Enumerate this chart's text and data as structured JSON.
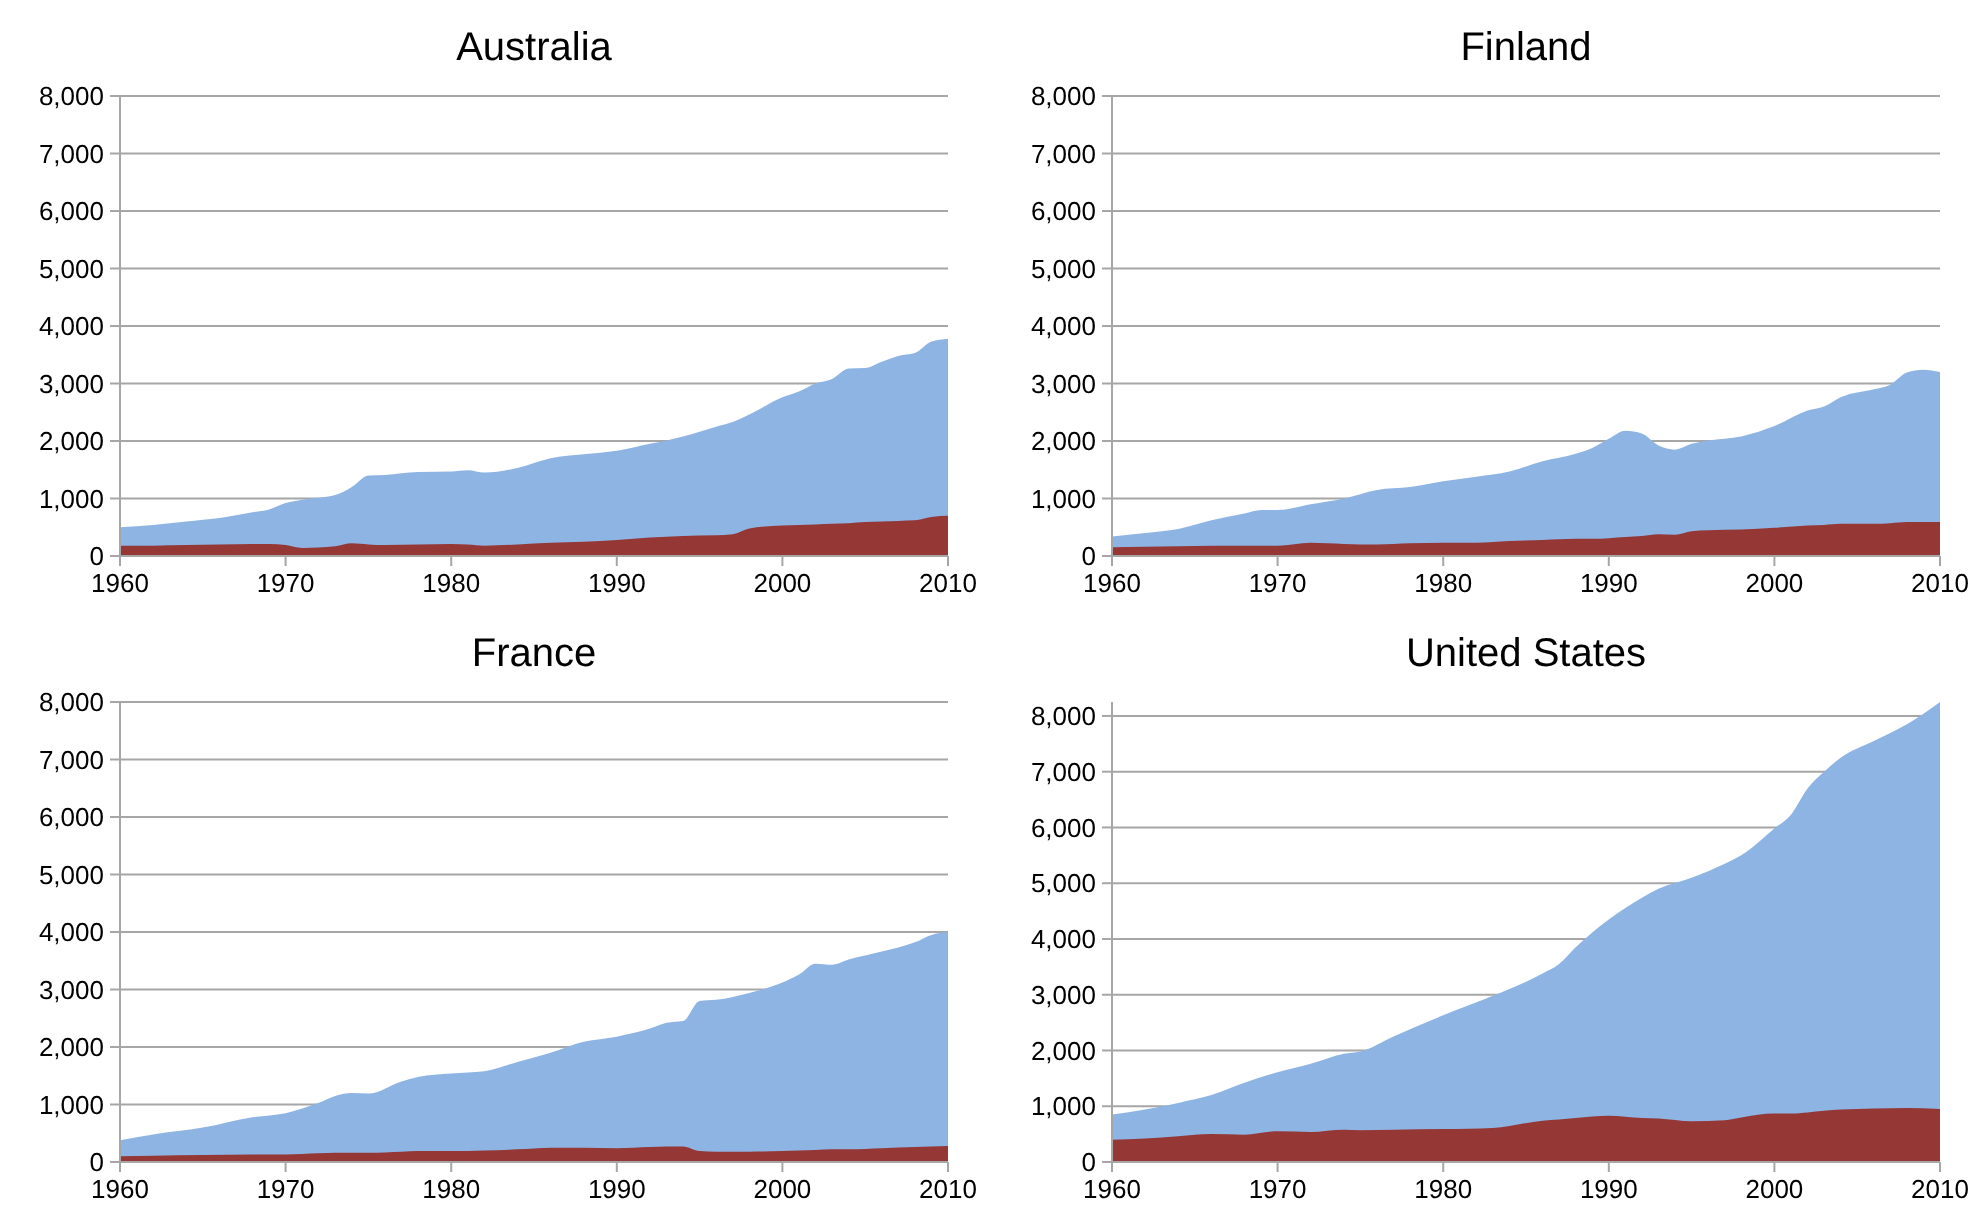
{
  "chart_data": [
    {
      "type": "area",
      "title": "Australia",
      "x": [
        1960,
        1962,
        1964,
        1966,
        1968,
        1969,
        1970,
        1971,
        1973,
        1974,
        1975,
        1976,
        1978,
        1980,
        1981,
        1982,
        1984,
        1986,
        1988,
        1990,
        1992,
        1994,
        1996,
        1997,
        1998,
        2000,
        2001,
        2002,
        2003,
        2004,
        2005,
        2006,
        2007,
        2008,
        2009,
        2010
      ],
      "xlim": [
        1960,
        2010
      ],
      "xticks": [
        1960,
        1970,
        1980,
        1990,
        2000,
        2010
      ],
      "ylim": [
        0,
        8000
      ],
      "yticks": [
        {
          "value": 0,
          "label": "0"
        },
        {
          "value": 1000,
          "label": "1,000"
        },
        {
          "value": 2000,
          "label": "2,000"
        },
        {
          "value": 3000,
          "label": "3,000"
        },
        {
          "value": 4000,
          "label": "4,000"
        },
        {
          "value": 5000,
          "label": "5,000"
        },
        {
          "value": 6000,
          "label": "6,000"
        },
        {
          "value": 7000,
          "label": "7,000"
        },
        {
          "value": 8000,
          "label": "8,000"
        }
      ],
      "grid": "y",
      "series": [
        {
          "color": "#8eb4e3",
          "values": [
            500,
            540,
            600,
            660,
            760,
            810,
            920,
            980,
            1060,
            1200,
            1400,
            1410,
            1460,
            1470,
            1490,
            1450,
            1530,
            1700,
            1770,
            1830,
            1950,
            2080,
            2250,
            2330,
            2460,
            2760,
            2860,
            3000,
            3080,
            3260,
            3270,
            3380,
            3480,
            3530,
            3730,
            3780
          ]
        },
        {
          "color": "#953735",
          "values": [
            180,
            180,
            190,
            200,
            210,
            210,
            190,
            140,
            170,
            220,
            200,
            190,
            200,
            210,
            200,
            180,
            200,
            230,
            250,
            280,
            320,
            350,
            360,
            380,
            480,
            530,
            540,
            550,
            560,
            570,
            590,
            600,
            610,
            620,
            680,
            700
          ]
        }
      ]
    },
    {
      "type": "area",
      "title": "Finland",
      "x": [
        1960,
        1962,
        1964,
        1966,
        1968,
        1969,
        1970,
        1972,
        1974,
        1976,
        1978,
        1980,
        1982,
        1984,
        1986,
        1988,
        1989,
        1990,
        1991,
        1992,
        1993,
        1994,
        1995,
        1996,
        1998,
        2000,
        2002,
        2003,
        2004,
        2006,
        2007,
        2008,
        2009,
        2010
      ],
      "xlim": [
        1960,
        2010
      ],
      "xticks": [
        1960,
        1970,
        1980,
        1990,
        2000,
        2010
      ],
      "ylim": [
        0,
        8000
      ],
      "yticks": [
        {
          "value": 0,
          "label": "0"
        },
        {
          "value": 1000,
          "label": "1,000"
        },
        {
          "value": 2000,
          "label": "2,000"
        },
        {
          "value": 3000,
          "label": "3,000"
        },
        {
          "value": 4000,
          "label": "4,000"
        },
        {
          "value": 5000,
          "label": "5,000"
        },
        {
          "value": 6000,
          "label": "6,000"
        },
        {
          "value": 7000,
          "label": "7,000"
        },
        {
          "value": 8000,
          "label": "8,000"
        }
      ],
      "grid": "y",
      "series": [
        {
          "color": "#8eb4e3",
          "values": [
            340,
            400,
            470,
            620,
            740,
            800,
            800,
            900,
            1000,
            1150,
            1200,
            1300,
            1380,
            1470,
            1650,
            1780,
            1880,
            2040,
            2180,
            2130,
            1920,
            1850,
            1950,
            2010,
            2080,
            2260,
            2530,
            2600,
            2760,
            2900,
            2980,
            3190,
            3240,
            3200
          ]
        },
        {
          "color": "#953735",
          "values": [
            150,
            160,
            170,
            180,
            180,
            180,
            180,
            230,
            210,
            200,
            220,
            230,
            230,
            260,
            280,
            300,
            300,
            310,
            330,
            350,
            380,
            370,
            430,
            450,
            460,
            490,
            530,
            540,
            560,
            560,
            570,
            590,
            590,
            590
          ]
        }
      ]
    },
    {
      "type": "area",
      "title": "France",
      "x": [
        1960,
        1962,
        1965,
        1968,
        1970,
        1972,
        1973,
        1974,
        1975,
        1977,
        1978,
        1980,
        1982,
        1984,
        1986,
        1988,
        1990,
        1992,
        1993,
        1994,
        1995,
        1996,
        1998,
        2000,
        2001,
        2002,
        2003,
        2004,
        2006,
        2008,
        2009,
        2010
      ],
      "xlim": [
        1960,
        2010
      ],
      "xticks": [
        1960,
        1970,
        1980,
        1990,
        2000,
        2010
      ],
      "ylim": [
        0,
        8000
      ],
      "yticks": [
        {
          "value": 0,
          "label": "0"
        },
        {
          "value": 1000,
          "label": "1,000"
        },
        {
          "value": 2000,
          "label": "2,000"
        },
        {
          "value": 3000,
          "label": "3,000"
        },
        {
          "value": 4000,
          "label": "4,000"
        },
        {
          "value": 5000,
          "label": "5,000"
        },
        {
          "value": 6000,
          "label": "6,000"
        },
        {
          "value": 7000,
          "label": "7,000"
        },
        {
          "value": 8000,
          "label": "8,000"
        }
      ],
      "grid": "y",
      "series": [
        {
          "color": "#8eb4e3",
          "values": [
            380,
            480,
            600,
            780,
            850,
            1030,
            1150,
            1200,
            1190,
            1400,
            1480,
            1540,
            1580,
            1740,
            1900,
            2090,
            2180,
            2320,
            2420,
            2450,
            2800,
            2820,
            2940,
            3120,
            3260,
            3450,
            3430,
            3520,
            3660,
            3820,
            3950,
            4000
          ]
        },
        {
          "color": "#953735",
          "values": [
            100,
            110,
            120,
            130,
            130,
            150,
            160,
            160,
            160,
            180,
            190,
            190,
            200,
            220,
            250,
            250,
            240,
            260,
            270,
            270,
            190,
            180,
            180,
            190,
            200,
            210,
            220,
            220,
            240,
            260,
            270,
            280
          ]
        }
      ]
    },
    {
      "type": "area",
      "title": "United States",
      "x": [
        1960,
        1962,
        1964,
        1966,
        1968,
        1970,
        1972,
        1974,
        1975,
        1977,
        1980,
        1983,
        1986,
        1987,
        1988,
        1990,
        1992,
        1993,
        1995,
        1997,
        1998,
        2000,
        2001,
        2002,
        2003,
        2004,
        2006,
        2008,
        2010
      ],
      "xlim": [
        1960,
        2010
      ],
      "xticks": [
        1960,
        1970,
        1980,
        1990,
        2000,
        2010
      ],
      "ylim": [
        0,
        8250
      ],
      "yticks": [
        {
          "value": 0,
          "label": "0"
        },
        {
          "value": 1000,
          "label": "1,000"
        },
        {
          "value": 2000,
          "label": "2,000"
        },
        {
          "value": 3000,
          "label": "3,000"
        },
        {
          "value": 4000,
          "label": "4,000"
        },
        {
          "value": 5000,
          "label": "5,000"
        },
        {
          "value": 6000,
          "label": "6,000"
        },
        {
          "value": 7000,
          "label": "7,000"
        },
        {
          "value": 8000,
          "label": "8,000"
        }
      ],
      "grid": "y",
      "series": [
        {
          "color": "#8eb4e3",
          "values": [
            850,
            940,
            1060,
            1200,
            1420,
            1610,
            1760,
            1940,
            1980,
            2250,
            2630,
            2980,
            3380,
            3550,
            3850,
            4350,
            4740,
            4900,
            5100,
            5350,
            5500,
            5980,
            6230,
            6700,
            7000,
            7250,
            7550,
            7850,
            8250
          ]
        },
        {
          "color": "#953735",
          "values": [
            400,
            420,
            460,
            500,
            490,
            550,
            540,
            580,
            570,
            580,
            590,
            610,
            740,
            760,
            790,
            830,
            790,
            780,
            730,
            750,
            800,
            870,
            870,
            890,
            920,
            940,
            960,
            970,
            950
          ]
        }
      ]
    }
  ]
}
